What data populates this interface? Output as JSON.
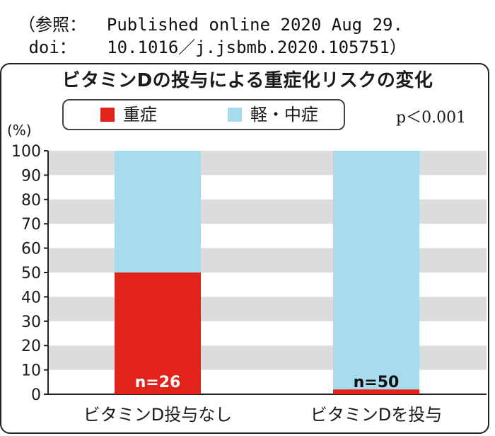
{
  "citation": {
    "line1": "（参照：  Published online 2020 Aug 29.",
    "line2": " doi：   10.1016／j.jsbmb.2020.105751）"
  },
  "chart_data": {
    "type": "bar",
    "stacked": true,
    "title": "ビタミンDの投与による重症化リスクの変化",
    "ylabel": "(%)",
    "ylim": [
      0,
      100
    ],
    "yticks": [
      0,
      10,
      20,
      30,
      40,
      50,
      60,
      70,
      80,
      90,
      100
    ],
    "grid": "alternating horizontal bands",
    "categories": [
      "ビタミンD投与なし",
      "ビタミンDを投与"
    ],
    "bar_labels": [
      "n=26",
      "n=50"
    ],
    "series": [
      {
        "name": "重症",
        "values": [
          50,
          2
        ],
        "color": "#e2231a"
      },
      {
        "name": "軽・中症",
        "values": [
          50,
          98
        ],
        "color": "#a7dcef"
      }
    ],
    "annotation": "p＜0.001",
    "legend_position": "top-left"
  },
  "colors": {
    "band": "#dcdcdc",
    "axis": "#222222"
  }
}
